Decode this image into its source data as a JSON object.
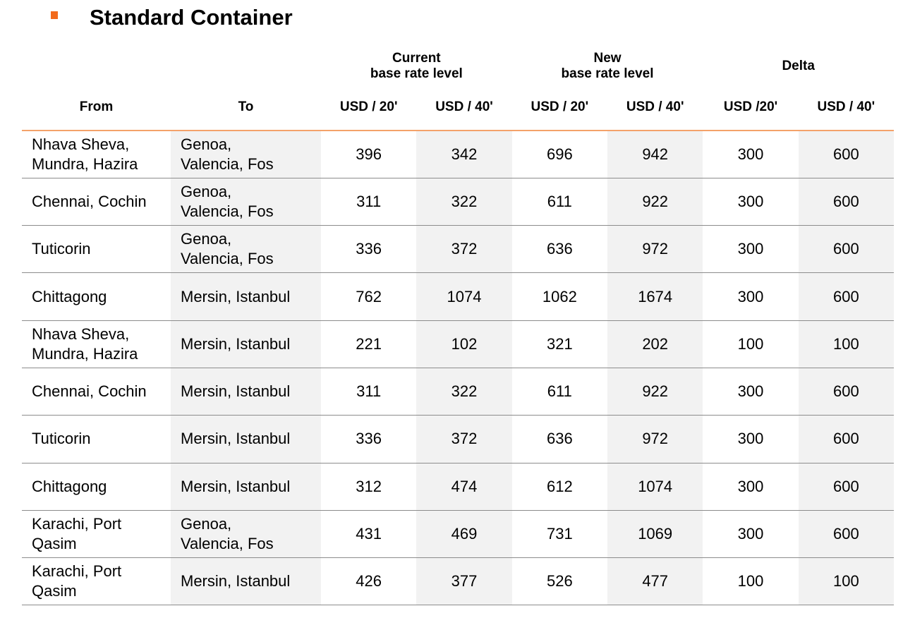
{
  "title": "Standard Container",
  "header": {
    "groups": {
      "current": "Current\nbase rate level",
      "new": "New\nbase rate level",
      "delta": "Delta"
    },
    "columns": {
      "from": "From",
      "to": "To",
      "current_20": "USD / 20'",
      "current_40": "USD / 40'",
      "new_20": "USD / 20'",
      "new_40": "USD / 40'",
      "delta_20": "USD /20'",
      "delta_40": "USD / 40'"
    }
  },
  "rows": [
    {
      "from": "Nhava Sheva,\nMundra, Hazira",
      "to": "Genoa,\nValencia, Fos",
      "current_20": "396",
      "current_40": "342",
      "new_20": "696",
      "new_40": "942",
      "delta_20": "300",
      "delta_40": "600"
    },
    {
      "from": "Chennai, Cochin",
      "to": "Genoa,\nValencia, Fos",
      "current_20": "311",
      "current_40": "322",
      "new_20": "611",
      "new_40": "922",
      "delta_20": "300",
      "delta_40": "600"
    },
    {
      "from": "Tuticorin",
      "to": "Genoa,\nValencia, Fos",
      "current_20": "336",
      "current_40": "372",
      "new_20": "636",
      "new_40": "972",
      "delta_20": "300",
      "delta_40": "600"
    },
    {
      "from": "Chittagong",
      "to": "Mersin, Istanbul",
      "current_20": "762",
      "current_40": "1074",
      "new_20": "1062",
      "new_40": "1674",
      "delta_20": "300",
      "delta_40": "600"
    },
    {
      "from": "Nhava Sheva,\nMundra, Hazira",
      "to": "Mersin, Istanbul",
      "current_20": "221",
      "current_40": "102",
      "new_20": "321",
      "new_40": "202",
      "delta_20": "100",
      "delta_40": "100"
    },
    {
      "from": "Chennai, Cochin",
      "to": "Mersin, Istanbul",
      "current_20": "311",
      "current_40": "322",
      "new_20": "611",
      "new_40": "922",
      "delta_20": "300",
      "delta_40": "600"
    },
    {
      "from": "Tuticorin",
      "to": "Mersin, Istanbul",
      "current_20": "336",
      "current_40": "372",
      "new_20": "636",
      "new_40": "972",
      "delta_20": "300",
      "delta_40": "600"
    },
    {
      "from": "Chittagong",
      "to": "Mersin, Istanbul",
      "current_20": "312",
      "current_40": "474",
      "new_20": "612",
      "new_40": "1074",
      "delta_20": "300",
      "delta_40": "600"
    },
    {
      "from": "Karachi, Port\nQasim",
      "to": "Genoa,\nValencia, Fos",
      "current_20": "431",
      "current_40": "469",
      "new_20": "731",
      "new_40": "1069",
      "delta_20": "300",
      "delta_40": "600"
    },
    {
      "from": "Karachi, Port\nQasim",
      "to": "Mersin, Istanbul",
      "current_20": "426",
      "current_40": "377",
      "new_20": "526",
      "new_40": "477",
      "delta_20": "100",
      "delta_40": "100"
    }
  ],
  "colors": {
    "bullet": "#f26a1b",
    "header_rule": "#f4a26a",
    "shade": "#f2f2f2",
    "row_rule": "#8c8c8c"
  }
}
